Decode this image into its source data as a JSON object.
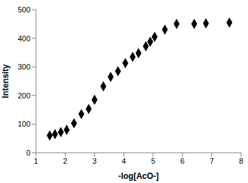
{
  "chart_data": {
    "type": "scatter",
    "x_label": "-log[AcO-]",
    "y_label": "Intensity",
    "x": [
      1.47,
      1.65,
      1.85,
      2.05,
      2.3,
      2.55,
      2.8,
      3.0,
      3.3,
      3.55,
      3.8,
      4.05,
      4.3,
      4.5,
      4.75,
      4.9,
      5.05,
      5.4,
      5.8,
      6.4,
      6.8,
      7.6
    ],
    "values": [
      60,
      65,
      72,
      80,
      103,
      135,
      153,
      185,
      232,
      265,
      285,
      313,
      335,
      348,
      372,
      388,
      405,
      430,
      450,
      450,
      452,
      455
    ],
    "color": "#000000",
    "marker": "diamond",
    "xlim": [
      1,
      8
    ],
    "xticks": [
      1,
      2,
      3,
      4,
      5,
      6,
      7,
      8
    ],
    "ylim": [
      0,
      500
    ],
    "yticks": [
      0,
      100,
      200,
      300,
      400,
      500
    ],
    "grid": false
  }
}
